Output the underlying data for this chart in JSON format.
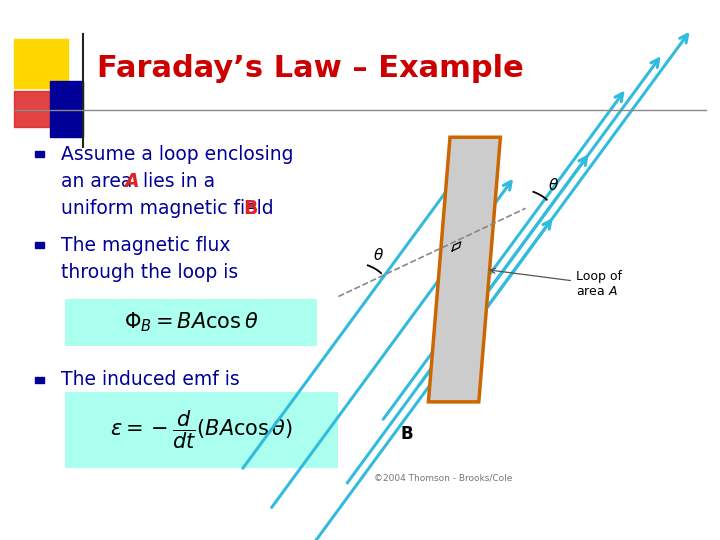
{
  "title": "Faraday’s Law – Example",
  "title_color": "#CC0000",
  "title_fontsize": 22,
  "bg_color": "#FFFFFF",
  "bullet_color": "#000099",
  "bullet_square_color": "#000099",
  "bullet1_line1": "Assume a loop enclosing",
  "bullet1_line2a": "an area ",
  "bullet1_A": "A",
  "bullet1_line2b": " lies in a",
  "bullet1_line3a": "uniform magnetic field ",
  "bullet1_B": "B",
  "bullet2_line1": "The magnetic flux",
  "bullet2_line2": "through the loop is",
  "bullet3_line1": "The induced emf is",
  "formula_bg": "#AAFFEE",
  "header_yellow": "#FFD700",
  "header_red": "#DD2222",
  "header_blue": "#000099",
  "footer_text": "©2004 Thomson - Brooks/Cole",
  "arrow_color": "#33BBDD",
  "loop_edge_color": "#CC6600",
  "loop_fill_color": "#CCCCCC",
  "text_color_black": "#111111"
}
